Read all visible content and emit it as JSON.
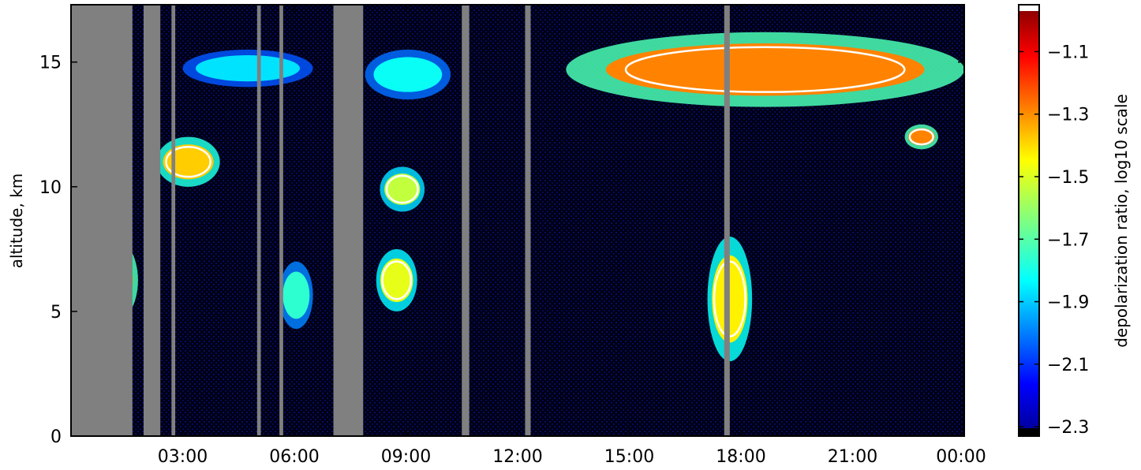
{
  "chart_data": {
    "type": "heatmap",
    "title": "",
    "xlabel": "",
    "ylabel": "altitude, km",
    "colorbar_label": "depolarization ratio, log10 scale",
    "x_tick_labels": [
      "03:00",
      "06:00",
      "09:00",
      "12:00",
      "15:00",
      "18:00",
      "21:00",
      "00:00"
    ],
    "x_ticks_hours": [
      3,
      6,
      9,
      12,
      15,
      18,
      21,
      24
    ],
    "xlim_hours": [
      0,
      24
    ],
    "y_tick_labels": [
      "0",
      "5",
      "10",
      "15"
    ],
    "y_ticks": [
      0,
      5,
      10,
      15
    ],
    "ylim": [
      0,
      17.3
    ],
    "colorbar_tick_labels": [
      "−1.1",
      "−1.3",
      "−1.5",
      "−1.7",
      "−1.9",
      "−2.1",
      "−2.3"
    ],
    "colorbar_ticks": [
      -1.1,
      -1.3,
      -1.5,
      -1.7,
      -1.9,
      -2.1,
      -2.3
    ],
    "colorbar_range": [
      -2.33,
      -0.95
    ],
    "colormap": "jet",
    "missing_data_color": "#808080",
    "contour_color": "#ffffff",
    "background_color": "#000000",
    "missing_data_periods_hours": [
      [
        0.0,
        1.65
      ],
      [
        1.95,
        2.4
      ],
      [
        2.7,
        2.8
      ],
      [
        5.0,
        5.1
      ],
      [
        5.6,
        5.7
      ],
      [
        7.05,
        7.85
      ],
      [
        10.5,
        10.7
      ],
      [
        12.2,
        12.35
      ],
      [
        17.55,
        17.7
      ]
    ],
    "cloud_features": [
      {
        "hours": [
          3.0,
          6.5
        ],
        "altitude_km": [
          14.0,
          15.5
        ],
        "log10_depol": -1.85
      },
      {
        "hours": [
          7.9,
          10.2
        ],
        "altitude_km": [
          13.5,
          15.5
        ],
        "log10_depol": -1.8
      },
      {
        "hours": [
          13.3,
          24.0
        ],
        "altitude_km": [
          13.2,
          16.2
        ],
        "log10_depol": -1.3
      },
      {
        "hours": [
          2.3,
          4.0
        ],
        "altitude_km": [
          10.0,
          12.0
        ],
        "log10_depol": -1.4
      },
      {
        "hours": [
          8.3,
          9.5
        ],
        "altitude_km": [
          9.0,
          10.8
        ],
        "log10_depol": -1.55
      },
      {
        "hours": [
          0.4,
          1.8
        ],
        "altitude_km": [
          4.5,
          8.0
        ],
        "log10_depol": -1.3
      },
      {
        "hours": [
          5.6,
          6.5
        ],
        "altitude_km": [
          4.3,
          7.0
        ],
        "log10_depol": -1.75
      },
      {
        "hours": [
          8.2,
          9.3
        ],
        "altitude_km": [
          5.0,
          7.5
        ],
        "log10_depol": -1.5
      },
      {
        "hours": [
          17.1,
          18.3
        ],
        "altitude_km": [
          3.0,
          8.0
        ],
        "log10_depol": -1.45
      },
      {
        "hours": [
          22.4,
          23.3
        ],
        "altitude_km": [
          11.5,
          12.5
        ],
        "log10_depol": -1.3
      }
    ]
  }
}
